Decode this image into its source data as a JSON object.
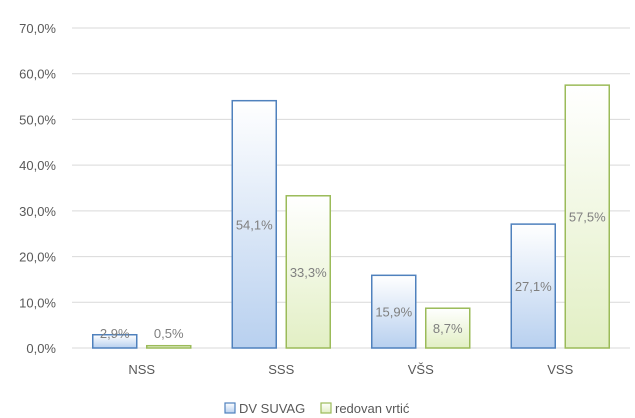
{
  "chart_data": {
    "type": "bar",
    "categories": [
      "NSS",
      "SSS",
      "VŠS",
      "VSS"
    ],
    "series": [
      {
        "name": "DV SUVAG",
        "values": [
          2.9,
          54.1,
          15.9,
          27.1
        ],
        "labels": [
          "2,9%",
          "54,1%",
          "15,9%",
          "27,1%"
        ]
      },
      {
        "name": "redovan vrtić",
        "values": [
          0.5,
          33.3,
          8.7,
          57.5
        ],
        "labels": [
          "0,5%",
          "33,3%",
          "8,7%",
          "57,5%"
        ]
      }
    ],
    "ylim": [
      0,
      70
    ],
    "yticks": [
      0,
      10,
      20,
      30,
      40,
      50,
      60,
      70
    ],
    "ytick_labels": [
      "0,0%",
      "10,0%",
      "20,0%",
      "30,0%",
      "40,0%",
      "50,0%",
      "60,0%",
      "70,0%"
    ],
    "grid": true,
    "legend_position": "bottom",
    "colors": {
      "series_1_stroke": "#4f81bd",
      "series_1_fill_top": "#ffffff",
      "series_1_fill_bottom": "#b8d0ef",
      "series_2_stroke": "#9bbb59",
      "series_2_fill_top": "#ffffff",
      "series_2_fill_bottom": "#e2efc4",
      "grid": "#d9d9d9"
    }
  }
}
